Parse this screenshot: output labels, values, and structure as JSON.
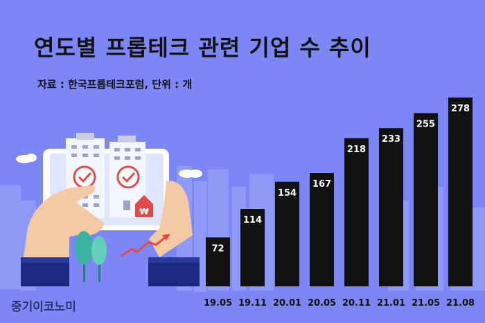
{
  "title": "연도별 프롭테크 관련 기업 수 추이",
  "subtitle": "자료 : 한국프롭테크포럼, 단위 : 개",
  "brand": "중기이코노미",
  "illustration": {
    "badge_symbol": "₩"
  },
  "colors": {
    "background": "#7c86f4",
    "bar": "#111111",
    "bar_label": "#ffffff",
    "axis_label": "#111111",
    "skyline": "#8f99f6"
  },
  "chart_data": {
    "type": "bar",
    "title": "연도별 프롭테크 관련 기업 수 추이",
    "subtitle": "자료 : 한국프롭테크포럼, 단위 : 개",
    "categories": [
      "19.05",
      "19.11",
      "20.01",
      "20.05",
      "20.11",
      "21.01",
      "21.05",
      "21.08"
    ],
    "values": [
      72,
      114,
      154,
      167,
      218,
      233,
      255,
      278
    ],
    "xlabel": "",
    "ylabel": "",
    "ylim": [
      0,
      278
    ],
    "grid": false,
    "legend": "none"
  }
}
